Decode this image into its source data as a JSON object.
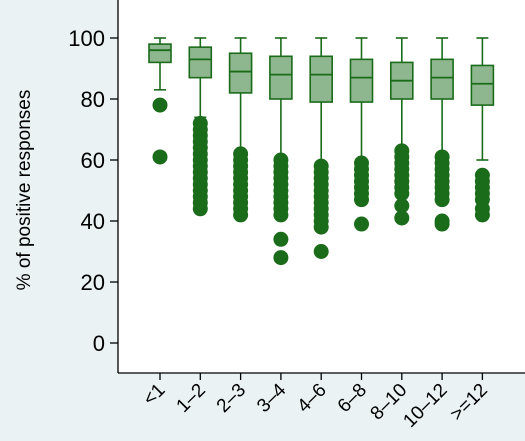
{
  "chart_data": {
    "type": "box",
    "title": "",
    "xlabel": "",
    "ylabel": "% of positive responses",
    "ylim": [
      -10,
      110
    ],
    "yticks": [
      0,
      20,
      40,
      60,
      80,
      100
    ],
    "grid": false,
    "categories": [
      "<1",
      "1–2",
      "2–3",
      "3–4",
      "4–6",
      "6–8",
      "8–10",
      "10–12",
      ">=12"
    ],
    "boxes": [
      {
        "category": "<1",
        "q1": 92,
        "median": 96,
        "q3": 98,
        "whisker_low": 83,
        "whisker_high": 100,
        "outliers": [
          78,
          61
        ]
      },
      {
        "category": "1–2",
        "q1": 87,
        "median": 93,
        "q3": 97,
        "whisker_low": 74,
        "whisker_high": 100,
        "outliers": [
          72,
          70,
          68,
          66,
          64,
          62,
          60,
          58,
          56,
          54,
          52,
          50,
          48,
          46,
          44
        ]
      },
      {
        "category": "2–3",
        "q1": 82,
        "median": 89,
        "q3": 95,
        "whisker_low": 63,
        "whisker_high": 100,
        "outliers": [
          62,
          60,
          58,
          56,
          54,
          52,
          50,
          48,
          46,
          44,
          42
        ]
      },
      {
        "category": "3–4",
        "q1": 80,
        "median": 88,
        "q3": 94,
        "whisker_low": 61,
        "whisker_high": 100,
        "outliers": [
          60,
          58,
          56,
          54,
          52,
          50,
          48,
          46,
          44,
          42,
          34,
          28
        ]
      },
      {
        "category": "4–6",
        "q1": 79,
        "median": 88,
        "q3": 94,
        "whisker_low": 59,
        "whisker_high": 100,
        "outliers": [
          58,
          56,
          54,
          52,
          50,
          48,
          46,
          44,
          42,
          40,
          38,
          30
        ]
      },
      {
        "category": "6–8",
        "q1": 79,
        "median": 87,
        "q3": 93,
        "whisker_low": 60,
        "whisker_high": 100,
        "outliers": [
          59,
          57,
          55,
          53,
          51,
          49,
          47,
          39
        ]
      },
      {
        "category": "8–10",
        "q1": 80,
        "median": 86,
        "q3": 92,
        "whisker_low": 63,
        "whisker_high": 100,
        "outliers": [
          63,
          61,
          59,
          57,
          55,
          53,
          51,
          49,
          45,
          41
        ]
      },
      {
        "category": "10–12",
        "q1": 80,
        "median": 87,
        "q3": 93,
        "whisker_low": 62,
        "whisker_high": 100,
        "outliers": [
          61,
          59,
          57,
          55,
          53,
          51,
          49,
          47,
          40,
          39
        ]
      },
      {
        "category": ">=12",
        "q1": 78,
        "median": 85,
        "q3": 91,
        "whisker_low": 60,
        "whisker_high": 100,
        "outliers": [
          55,
          53,
          51,
          49,
          47,
          44,
          42
        ]
      }
    ],
    "colors": {
      "background": "#eaf2f3",
      "plot_background": "#ffffff",
      "box_fill": "#8fb78f",
      "line": "#1a6b1a",
      "outlier": "#1a6b1a"
    }
  }
}
